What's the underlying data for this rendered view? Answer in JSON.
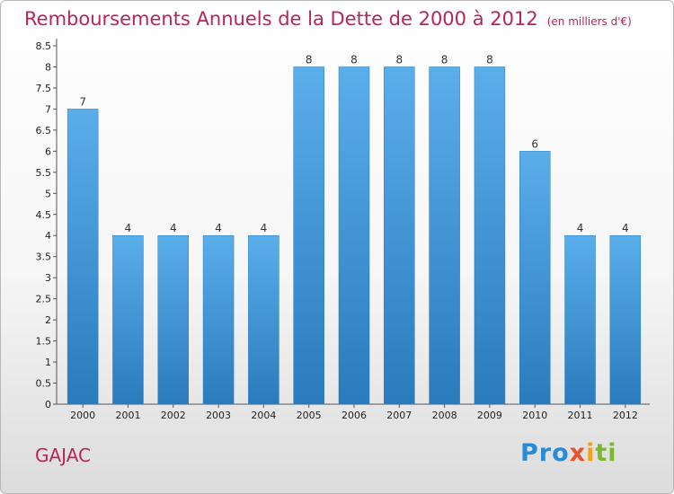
{
  "header": {
    "title": "Remboursements Annuels de la Dette de 2000 à 2012",
    "subtitle": "(en milliers d'€)"
  },
  "footer": {
    "town": "GAJAC",
    "logo": {
      "p1": "Pro",
      "p2": "x",
      "p3": "i",
      "p4": "ti"
    }
  },
  "colors": {
    "accent": "#b9245a",
    "bar_top": "#5aaeea",
    "bar_bottom": "#2a7bbd"
  },
  "chart_data": {
    "type": "bar",
    "title": "Remboursements Annuels de la Dette de 2000 à 2012",
    "subtitle": "(en milliers d'€)",
    "xlabel": "",
    "ylabel": "",
    "categories": [
      "2000",
      "2001",
      "2002",
      "2003",
      "2004",
      "2005",
      "2006",
      "2007",
      "2008",
      "2009",
      "2010",
      "2011",
      "2012"
    ],
    "values": [
      7,
      4,
      4,
      4,
      4,
      8,
      8,
      8,
      8,
      8,
      6,
      4,
      4
    ],
    "data_labels": [
      "7",
      "4",
      "4",
      "4",
      "4",
      "8",
      "8",
      "8",
      "8",
      "8",
      "6",
      "4",
      "4"
    ],
    "ylim": [
      0,
      8.5
    ],
    "yticks": [
      0,
      0.5,
      1,
      1.5,
      2,
      2.5,
      3,
      3.5,
      4,
      4.5,
      5,
      5.5,
      6,
      6.5,
      7,
      7.5,
      8,
      8.5
    ],
    "ytick_labels": [
      "0",
      "0.5",
      "1",
      "1.5",
      "2",
      "2.5",
      "3",
      "3.5",
      "4",
      "4.5",
      "5",
      "5.5",
      "6",
      "6.5",
      "7",
      "7.5",
      "8",
      "8.5"
    ],
    "grid": false,
    "legend": "none"
  }
}
